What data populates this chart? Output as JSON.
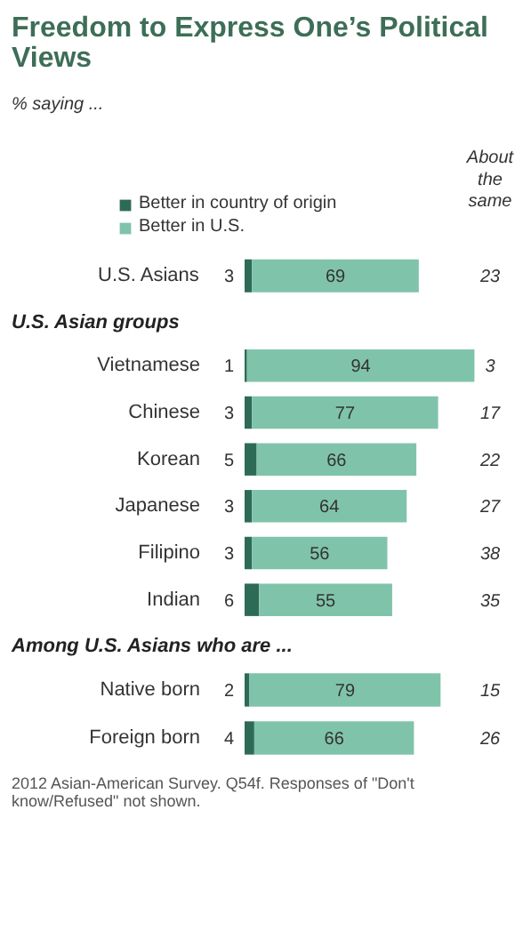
{
  "chart_data": [
    {
      "type": "bar",
      "orientation": "horizontal",
      "stacked": true,
      "title": "Freedom to Express One’s Political Views",
      "subtitle": "% saying ...",
      "categories": [
        "U.S. Asians"
      ],
      "series": [
        {
          "name": "Better in country of origin",
          "color": "#2e6b57",
          "values": [
            3
          ]
        },
        {
          "name": "Better in U.S.",
          "color": "#80c3ab",
          "values": [
            69
          ]
        }
      ],
      "data_labels": true,
      "legend": "top left",
      "annotations": [
        "About the same",
        "23"
      ]
    },
    {
      "type": "bar",
      "orientation": "horizontal",
      "stacked": true,
      "title": "U.S. Asian groups",
      "categories": [
        "Vietnamese",
        "Chinese",
        "Korean",
        "Japanese",
        "Filipino",
        "Indian"
      ],
      "series": [
        {
          "color": "#2e6b57",
          "values": [
            1,
            3,
            5,
            3,
            3,
            6
          ]
        },
        {
          "color": "#80c3ab",
          "values": [
            94,
            77,
            66,
            64,
            56,
            55
          ]
        }
      ],
      "data_labels": true,
      "annotations": [
        "3",
        "17",
        "22",
        "27",
        "38",
        "35"
      ]
    },
    {
      "type": "bar",
      "orientation": "horizontal",
      "stacked": true,
      "title": "Among U.S. Asians who are ...",
      "categories": [
        "Native born",
        "Foreign born"
      ],
      "series": [
        {
          "color": "#2e6b57",
          "values": [
            2,
            4
          ]
        },
        {
          "color": "#80c3ab",
          "values": [
            79,
            66
          ]
        }
      ],
      "data_labels": true,
      "annotations": [
        "15",
        "26",
        "2012 Asian-American Survey. Q54f. Responses of \"Don't know/Refused\" not shown."
      ]
    }
  ]
}
